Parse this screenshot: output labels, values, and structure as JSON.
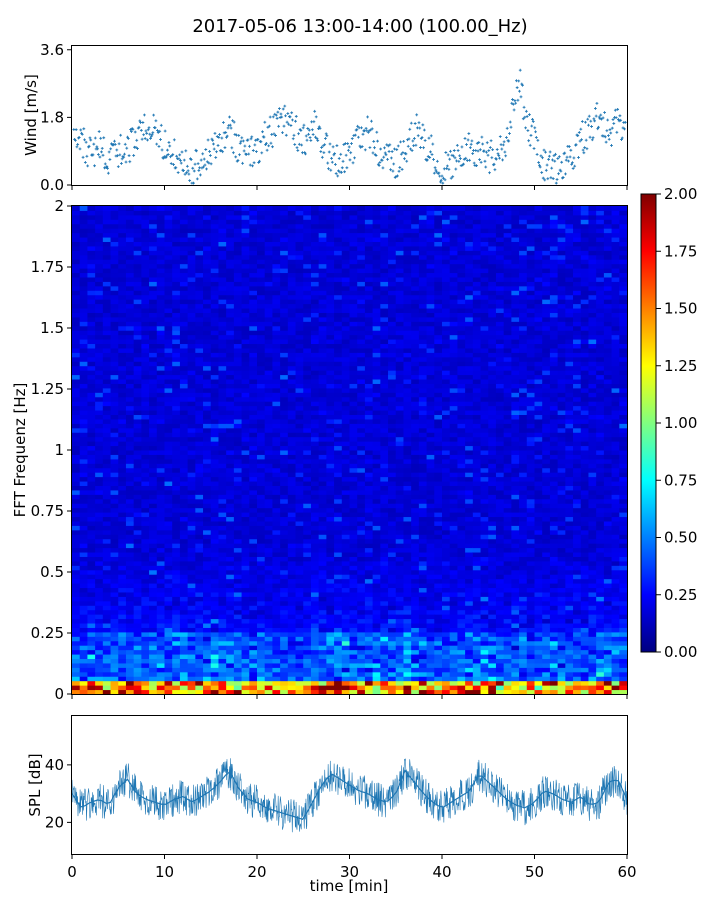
{
  "title": "2017-05-06 13:00-14:00 (100.00_Hz)",
  "chart_data": [
    {
      "type": "scatter",
      "panel": "wind",
      "ylabel": "Wind [m/s]",
      "xlim": [
        0,
        60
      ],
      "ylim": [
        0,
        3.7
      ],
      "yticks": [
        0.0,
        1.8,
        3.6
      ],
      "ytick_labels": [
        "0.0",
        "1.8",
        "3.6"
      ],
      "marker": "+",
      "color": "#1f77b4",
      "trend": {
        "x": [
          0,
          1,
          2,
          3,
          4,
          5,
          6,
          7,
          8,
          9,
          10,
          11,
          12,
          13,
          14,
          15,
          16,
          17,
          18,
          19,
          20,
          21,
          22,
          23,
          24,
          25,
          26,
          27,
          28,
          29,
          30,
          31,
          32,
          33,
          34,
          35,
          36,
          37,
          38,
          39,
          40,
          41,
          42,
          43,
          44,
          45,
          46,
          47,
          48,
          48.5,
          49,
          50,
          51,
          52,
          53,
          54,
          55,
          56,
          57,
          58,
          59,
          60
        ],
        "y": [
          1.7,
          1.2,
          0.8,
          1.0,
          0.7,
          0.9,
          1.0,
          1.2,
          1.6,
          1.4,
          1.0,
          0.8,
          0.6,
          0.4,
          0.6,
          1.0,
          1.2,
          1.5,
          1.0,
          0.9,
          0.8,
          1.3,
          1.5,
          1.7,
          1.5,
          1.1,
          1.7,
          1.2,
          0.7,
          0.6,
          0.8,
          1.2,
          1.4,
          1.0,
          0.7,
          0.6,
          0.9,
          1.5,
          1.2,
          0.8,
          0.4,
          0.5,
          0.8,
          1.0,
          0.9,
          0.7,
          0.9,
          1.2,
          2.3,
          2.8,
          1.6,
          1.4,
          0.5,
          0.4,
          0.3,
          0.8,
          1.2,
          1.5,
          1.8,
          1.4,
          1.6,
          1.2
        ]
      }
    },
    {
      "type": "heatmap",
      "panel": "spectrogram",
      "ylabel": "FFT Frequenz [Hz]",
      "xlim": [
        0,
        60
      ],
      "ylim": [
        0,
        2
      ],
      "yticks": [
        0,
        0.25,
        0.5,
        0.75,
        1,
        1.25,
        1.5,
        1.75,
        2
      ],
      "ytick_labels": [
        "0",
        "0.25",
        "0.5",
        "0.75",
        "1",
        "1.25",
        "1.5",
        "1.75",
        "2"
      ],
      "colormap": "jet",
      "clim": [
        0,
        2
      ],
      "colorbar_ticks": [
        "0.00",
        "0.25",
        "0.50",
        "0.75",
        "1.00",
        "1.25",
        "1.50",
        "1.75",
        "2.00"
      ],
      "colorbar_colors": [
        "#000080",
        "#0000ff",
        "#0080ff",
        "#00ffff",
        "#80ff80",
        "#ffff00",
        "#ff8000",
        "#ff0000",
        "#800000"
      ]
    },
    {
      "type": "line",
      "panel": "spl",
      "ylabel": "SPL [dB]",
      "xlabel": "time [min]",
      "xlim": [
        0,
        60
      ],
      "ylim": [
        9,
        57
      ],
      "yticks": [
        20,
        40
      ],
      "ytick_labels": [
        "20",
        "40"
      ],
      "xticks": [
        0,
        10,
        20,
        30,
        40,
        50,
        60
      ],
      "xtick_labels": [
        "0",
        "10",
        "20",
        "30",
        "40",
        "50",
        "60"
      ],
      "color": "#1f77b4",
      "trend": {
        "x": [
          0,
          1,
          2,
          3,
          4,
          5,
          6,
          7,
          8,
          9,
          10,
          11,
          12,
          13,
          14,
          15,
          16,
          17,
          18,
          19,
          20,
          21,
          22,
          23,
          24,
          25,
          26,
          27,
          28,
          29,
          30,
          31,
          32,
          33,
          34,
          35,
          36,
          37,
          38,
          39,
          40,
          41,
          42,
          43,
          44,
          45,
          46,
          47,
          48,
          49,
          50,
          51,
          52,
          53,
          54,
          55,
          56,
          57,
          58,
          59,
          60
        ],
        "y": [
          30,
          25,
          27,
          28,
          26,
          32,
          35,
          30,
          28,
          27,
          26,
          28,
          29,
          27,
          29,
          31,
          34,
          38,
          32,
          28,
          27,
          25,
          24,
          23,
          22,
          21,
          27,
          33,
          37,
          35,
          33,
          31,
          30,
          28,
          27,
          30,
          38,
          34,
          30,
          27,
          25,
          27,
          29,
          31,
          37,
          34,
          31,
          28,
          26,
          25,
          27,
          31,
          30,
          28,
          27,
          29,
          26,
          27,
          34,
          35,
          28
        ]
      }
    }
  ]
}
